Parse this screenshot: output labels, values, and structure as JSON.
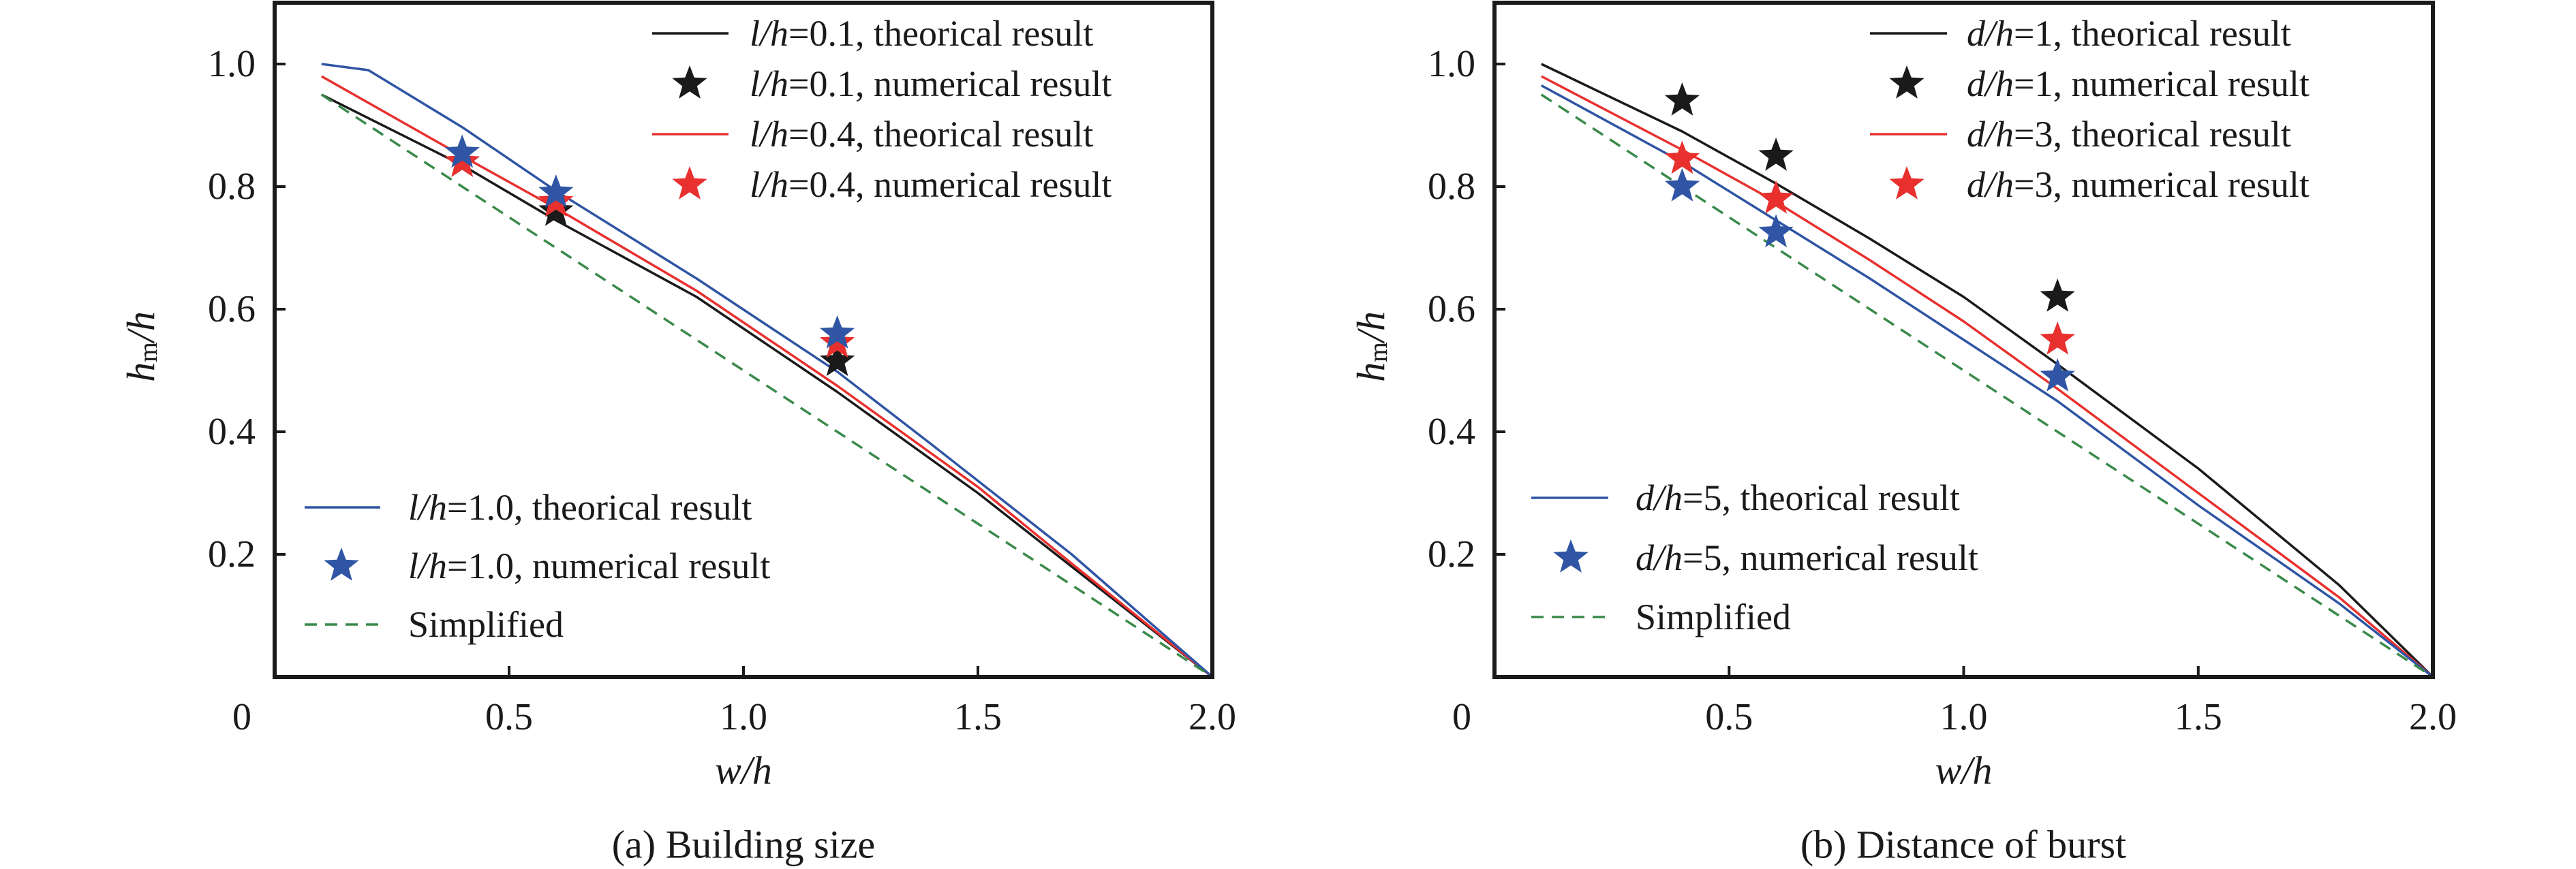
{
  "chart_data": [
    {
      "type": "line",
      "title": "(a) Building size",
      "xlabel": "w/h",
      "ylabel": {
        "main": "h",
        "sub": "m",
        "rest": "/h"
      },
      "xlim": [
        0,
        2.0
      ],
      "ylim": [
        0,
        1.1
      ],
      "xticks": [
        0,
        0.5,
        1.0,
        1.5,
        2.0
      ],
      "xtick_labels": [
        "0",
        "0.5",
        "1.0",
        "1.5",
        "2.0"
      ],
      "yticks": [
        0.2,
        0.4,
        0.6,
        0.8,
        1.0
      ],
      "ytick_labels": [
        "0.2",
        "0.4",
        "0.6",
        "0.8",
        "1.0"
      ],
      "grid": false,
      "legend": {
        "top-right": [
          0,
          1,
          2,
          3
        ],
        "bottom-left": [
          4,
          5,
          6
        ]
      },
      "series": [
        {
          "name": "l/h=0.1, theorical result",
          "kind": "line",
          "color": "#1a1a1a",
          "x": [
            0.1,
            0.4,
            0.6,
            0.9,
            1.2,
            1.5,
            1.7,
            2.0
          ],
          "y": [
            0.95,
            0.835,
            0.745,
            0.62,
            0.465,
            0.3,
            0.18,
            0.0
          ]
        },
        {
          "name": "l/h=0.1, numerical result",
          "kind": "scatter",
          "marker": "star",
          "color": "#1a1a1a",
          "x": [
            0.4,
            0.6,
            1.2
          ],
          "y": [
            0.84,
            0.76,
            0.515
          ]
        },
        {
          "name": "l/h=0.4, theorical result",
          "kind": "line",
          "color": "#e8312f",
          "x": [
            0.1,
            0.4,
            0.6,
            0.9,
            1.2,
            1.5,
            1.7,
            2.0
          ],
          "y": [
            0.98,
            0.85,
            0.765,
            0.63,
            0.475,
            0.31,
            0.185,
            0.0
          ]
        },
        {
          "name": "l/h=0.4, numerical result",
          "kind": "scatter",
          "marker": "star",
          "color": "#e8312f",
          "x": [
            0.4,
            0.6,
            1.2
          ],
          "y": [
            0.84,
            0.775,
            0.545
          ]
        },
        {
          "name": "l/h=1.0, theorical result",
          "kind": "line",
          "color": "#2f55a4",
          "x": [
            0.1,
            0.2,
            0.4,
            0.6,
            0.9,
            1.2,
            1.4,
            1.7,
            2.0
          ],
          "y": [
            1.0,
            0.99,
            0.897,
            0.793,
            0.65,
            0.498,
            0.38,
            0.2,
            0.0
          ]
        },
        {
          "name": "l/h=1.0, numerical result",
          "kind": "scatter",
          "marker": "star",
          "color": "#2f55a4",
          "x": [
            0.4,
            0.6,
            1.2
          ],
          "y": [
            0.855,
            0.79,
            0.56
          ]
        },
        {
          "name": "Simplified",
          "kind": "line",
          "dash": true,
          "color": "#3a8a4a",
          "x": [
            0.1,
            2.0
          ],
          "y": [
            0.95,
            0.0
          ]
        }
      ]
    },
    {
      "type": "line",
      "title": "(b) Distance of burst",
      "xlabel": "w/h",
      "ylabel": {
        "main": "h",
        "sub": "m",
        "rest": "/h"
      },
      "xlim": [
        0,
        2.0
      ],
      "ylim": [
        0,
        1.1
      ],
      "xticks": [
        0,
        0.5,
        1.0,
        1.5,
        2.0
      ],
      "xtick_labels": [
        "0",
        "0.5",
        "1.0",
        "1.5",
        "2.0"
      ],
      "yticks": [
        0.2,
        0.4,
        0.6,
        0.8,
        1.0
      ],
      "ytick_labels": [
        "0.2",
        "0.4",
        "0.6",
        "0.8",
        "1.0"
      ],
      "grid": false,
      "legend": {
        "top-right": [
          0,
          1,
          2,
          3
        ],
        "bottom-left": [
          4,
          5,
          6
        ]
      },
      "series": [
        {
          "name": "d/h=1, theorical result",
          "kind": "line",
          "color": "#1a1a1a",
          "x": [
            0.1,
            0.4,
            0.6,
            0.8,
            1.0,
            1.2,
            1.5,
            1.8,
            2.0
          ],
          "y": [
            1.0,
            0.89,
            0.805,
            0.715,
            0.62,
            0.51,
            0.34,
            0.15,
            0.0
          ]
        },
        {
          "name": "d/h=1, numerical result",
          "kind": "scatter",
          "marker": "star",
          "color": "#1a1a1a",
          "x": [
            0.4,
            0.6,
            1.2
          ],
          "y": [
            0.94,
            0.85,
            0.62
          ]
        },
        {
          "name": "d/h=3, theorical result",
          "kind": "line",
          "color": "#e8312f",
          "x": [
            0.1,
            0.4,
            0.6,
            0.8,
            1.0,
            1.2,
            1.5,
            1.8,
            2.0
          ],
          "y": [
            0.98,
            0.86,
            0.775,
            0.68,
            0.58,
            0.47,
            0.3,
            0.13,
            0.0
          ]
        },
        {
          "name": "d/h=3, numerical result",
          "kind": "scatter",
          "marker": "star",
          "color": "#e8312f",
          "x": [
            0.4,
            0.6,
            1.2
          ],
          "y": [
            0.845,
            0.78,
            0.55
          ]
        },
        {
          "name": "d/h=5, theorical result",
          "kind": "line",
          "color": "#2f55a4",
          "x": [
            0.1,
            0.4,
            0.6,
            0.8,
            1.0,
            1.2,
            1.5,
            1.8,
            2.0
          ],
          "y": [
            0.965,
            0.84,
            0.745,
            0.65,
            0.55,
            0.45,
            0.28,
            0.12,
            0.0
          ]
        },
        {
          "name": "d/h=5, numerical result",
          "kind": "scatter",
          "marker": "star",
          "color": "#2f55a4",
          "x": [
            0.4,
            0.6,
            1.2
          ],
          "y": [
            0.8,
            0.725,
            0.49
          ]
        },
        {
          "name": "Simplified",
          "kind": "line",
          "dash": true,
          "color": "#3a8a4a",
          "x": [
            0.1,
            2.0
          ],
          "y": [
            0.95,
            0.0
          ]
        }
      ]
    }
  ]
}
